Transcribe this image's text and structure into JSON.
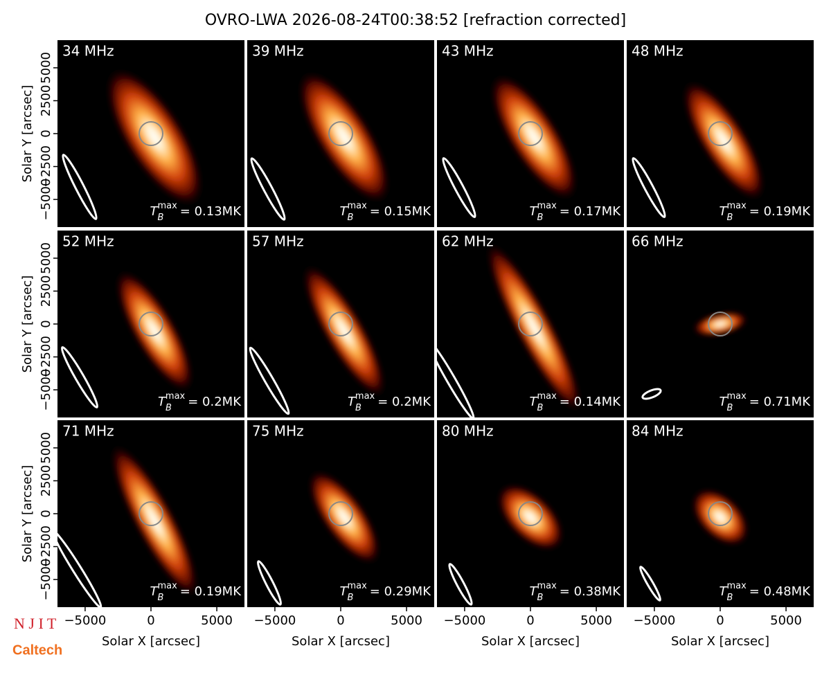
{
  "chart_data": {
    "type": "image-grid",
    "title": "OVRO-LWA 2026-08-24T00:38:52 [refraction corrected]",
    "xlabel": "Solar X [arcsec]",
    "ylabel": "Solar Y [arcsec]",
    "xlim": [
      -7100,
      7100
    ],
    "ylim": [
      -7100,
      7100
    ],
    "xticks": [
      {
        "value": -5000,
        "label": "−5000"
      },
      0,
      5000
    ],
    "yticks": [
      {
        "value": -5000,
        "label": "−5000"
      },
      {
        "value": -2500,
        "label": "−2500"
      },
      0,
      2500,
      5000
    ],
    "tmax_symbol": {
      "base": "T",
      "sub": "B",
      "sup": "max"
    },
    "panels": [
      {
        "name": "34 MHz",
        "values": [
          0.13
        ],
        "value_labels": [
          "= 0.13MK"
        ]
      },
      {
        "name": "39 MHz",
        "values": [
          0.15
        ],
        "value_labels": [
          "= 0.15MK"
        ]
      },
      {
        "name": "43 MHz",
        "values": [
          0.17
        ],
        "value_labels": [
          "= 0.17MK"
        ]
      },
      {
        "name": "48 MHz",
        "values": [
          0.19
        ],
        "value_labels": [
          "= 0.19MK"
        ]
      },
      {
        "name": "52 MHz",
        "values": [
          0.2
        ],
        "value_labels": [
          "= 0.2MK"
        ]
      },
      {
        "name": "57 MHz",
        "values": [
          0.2
        ],
        "value_labels": [
          "= 0.2MK"
        ]
      },
      {
        "name": "62 MHz",
        "values": [
          0.14
        ],
        "value_labels": [
          "= 0.14MK"
        ]
      },
      {
        "name": "66 MHz",
        "values": [
          0.71
        ],
        "value_labels": [
          "= 0.71MK"
        ]
      },
      {
        "name": "71 MHz",
        "values": [
          0.19
        ],
        "value_labels": [
          "= 0.19MK"
        ]
      },
      {
        "name": "75 MHz",
        "values": [
          0.29
        ],
        "value_labels": [
          "= 0.29MK"
        ]
      },
      {
        "name": "80 MHz",
        "values": [
          0.38
        ],
        "value_labels": [
          "= 0.38MK"
        ]
      },
      {
        "name": "84 MHz",
        "values": [
          0.48
        ],
        "value_labels": [
          "= 0.48MK"
        ]
      }
    ]
  },
  "logos": {
    "njit": "N J I T",
    "caltech": "Caltech"
  }
}
